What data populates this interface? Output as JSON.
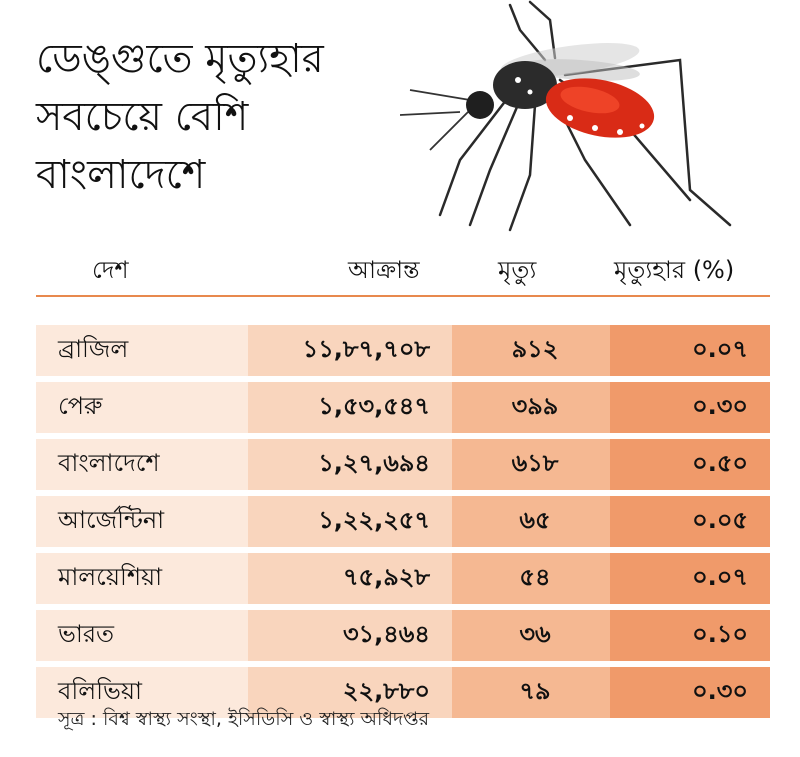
{
  "title_lines": [
    "ডেঙ্গুতে মৃত্যুহার",
    "সবচেয়ে বেশি",
    "বাংলাদেশে"
  ],
  "headers": {
    "country": "দেশ",
    "cases": "আক্রান্ত",
    "deaths": "মৃত্যু",
    "rate": "মৃত্যুহার (%)"
  },
  "rows": [
    {
      "country": "ব্রাজিল",
      "cases": "১১,৮৭,৭০৮",
      "deaths": "৯১২",
      "rate": "০.০৭"
    },
    {
      "country": "পেরু",
      "cases": "১,৫৩,৫৪৭",
      "deaths": "৩৯৯",
      "rate": "০.৩০"
    },
    {
      "country": "বাংলাদেশে",
      "cases": "১,২৭,৬৯৪",
      "deaths": "৬১৮",
      "rate": "০.৫০"
    },
    {
      "country": "আর্জেন্টিনা",
      "cases": "১,২২,২৫৭",
      "deaths": "৬৫",
      "rate": "০.০৫"
    },
    {
      "country": "মালয়েশিয়া",
      "cases": "৭৫,৯২৮",
      "deaths": "৫৪",
      "rate": "০.০৭"
    },
    {
      "country": "ভারত",
      "cases": "৩১,৪৬৪",
      "deaths": "৩৬",
      "rate": "০.১০"
    },
    {
      "country": "বলিভিয়া",
      "cases": "২২,৮৮০",
      "deaths": "৭৯",
      "rate": "০.৩০"
    }
  ],
  "source": "সূত্র : বিশ্ব স্বাস্থ্য সংস্থা, ইসিডিসি ও স্বাস্থ্য অধিদপ্তর",
  "chart_data": {
    "type": "table",
    "columns": [
      "দেশ",
      "আক্রান্ত",
      "মৃত্যু",
      "মৃত্যুহার (%)"
    ],
    "rows": [
      [
        "ব্রাজিল",
        "১১,৮৭,৭০৮",
        "৯১২",
        "০.০৭"
      ],
      [
        "পেরু",
        "১,৫৩,৫৪৭",
        "৩৯৯",
        "০.৩০"
      ],
      [
        "বাংলাদেশে",
        "১,২৭,৬৯৪",
        "৬১৮",
        "০.৫০"
      ],
      [
        "আর্জেন্টিনা",
        "১,২২,২৫৭",
        "৬৫",
        "০.০৫"
      ],
      [
        "মালয়েশিয়া",
        "৭৫,৯২৮",
        "৫৪",
        "০.০৭"
      ],
      [
        "ভারত",
        "৩১,৪৬৪",
        "৩৬",
        "০.১০"
      ],
      [
        "বলিভিয়া",
        "২২,৮৮০",
        "৭৯",
        "০.৩০"
      ]
    ],
    "values": {
      "cases": [
        1187708,
        153547,
        127694,
        122257,
        75928,
        31464,
        22880
      ],
      "deaths": [
        912,
        399,
        618,
        65,
        54,
        36,
        79
      ],
      "rate_percent": [
        0.07,
        0.3,
        0.5,
        0.05,
        0.07,
        0.1,
        0.3
      ]
    },
    "title": "ডেঙ্গুতে মৃত্যুহার সবচেয়ে বেশি বাংলাদেশে"
  }
}
